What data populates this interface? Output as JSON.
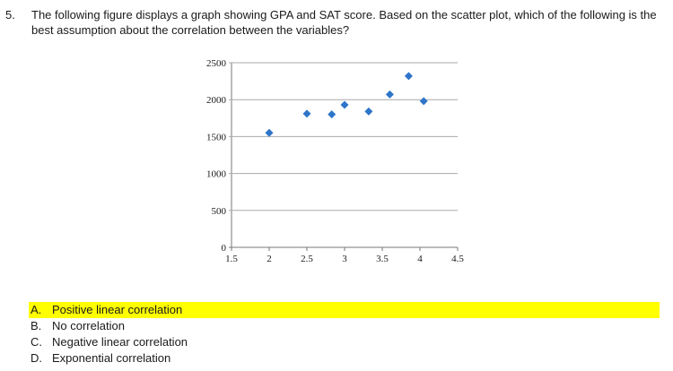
{
  "question": {
    "number": "5.",
    "text": "The following figure displays a graph showing GPA and SAT score. Based on the scatter plot, which of the following is the best assumption about the correlation between the variables?"
  },
  "chart_data": {
    "type": "scatter",
    "title": "",
    "xlabel": "",
    "ylabel": "",
    "xlim": [
      1.5,
      4.5
    ],
    "ylim": [
      0,
      2500
    ],
    "x_ticks": [
      "1.5",
      "2",
      "2.5",
      "3",
      "3.5",
      "4",
      "4.5"
    ],
    "y_ticks": [
      "0",
      "500",
      "1000",
      "1500",
      "2000",
      "2500"
    ],
    "grid": "horizontal",
    "marker_color": "#2e75c9",
    "x": [
      2.0,
      2.5,
      2.83,
      3.0,
      3.32,
      3.6,
      3.85,
      4.05
    ],
    "y": [
      1550,
      1810,
      1800,
      1930,
      1840,
      2070,
      2320,
      1980
    ]
  },
  "options": [
    {
      "letter": "A.",
      "text": "Positive linear correlation",
      "highlighted": true
    },
    {
      "letter": "B.",
      "text": "No correlation",
      "highlighted": false
    },
    {
      "letter": "C.",
      "text": "Negative linear correlation",
      "highlighted": false
    },
    {
      "letter": "D.",
      "text": "Exponential correlation",
      "highlighted": false
    }
  ]
}
